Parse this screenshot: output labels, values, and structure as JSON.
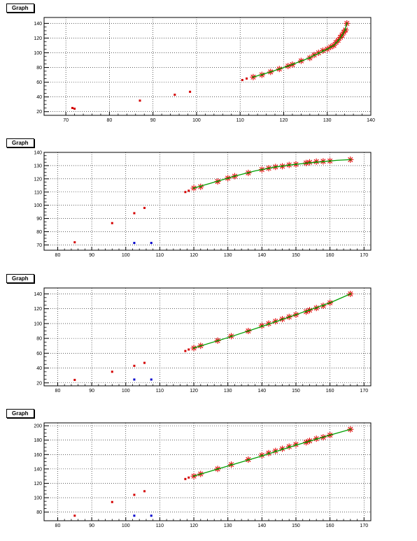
{
  "chart_data": [
    {
      "type": "scatter",
      "title": "Graph",
      "xlim": [
        65,
        140
      ],
      "ylim": [
        15,
        148
      ],
      "xticks": [
        70,
        80,
        90,
        100,
        110,
        120,
        130,
        140
      ],
      "yticks": [
        20,
        40,
        60,
        80,
        100,
        120,
        140
      ],
      "grid": true,
      "series": [
        {
          "style": "red-square",
          "color": "#d40000",
          "x": [
            71.5,
            72,
            87,
            95,
            98.5,
            110.5,
            111.5
          ],
          "y": [
            25,
            24,
            35,
            43,
            47,
            63,
            65
          ]
        },
        {
          "style": "red-star",
          "color": "#e00000",
          "x": [
            113,
            115,
            117,
            119,
            121,
            122,
            124,
            126,
            127,
            128,
            129,
            130,
            130.8,
            131.5,
            132,
            132.5,
            133,
            133.4,
            133.8,
            134.2,
            134.5
          ],
          "y": [
            67,
            70,
            74,
            78,
            82,
            84,
            89,
            93,
            97,
            100,
            103,
            105,
            108,
            110,
            114,
            117,
            121,
            124,
            128,
            131,
            140
          ]
        },
        {
          "style": "green-line",
          "color": "#00a000",
          "x": [
            113,
            117,
            121,
            125,
            128,
            130,
            131.5,
            132.5,
            133.4,
            134,
            134.5
          ],
          "y": [
            67,
            74,
            82,
            91,
            99,
            105,
            110,
            116,
            123,
            130,
            140
          ]
        }
      ]
    },
    {
      "type": "scatter",
      "title": "Graph",
      "xlim": [
        76,
        172
      ],
      "ylim": [
        66,
        140
      ],
      "xticks": [
        80,
        90,
        100,
        110,
        120,
        130,
        140,
        150,
        160,
        170
      ],
      "yticks": [
        70,
        80,
        90,
        100,
        110,
        120,
        130,
        140
      ],
      "grid": true,
      "series": [
        {
          "style": "red-square",
          "color": "#d40000",
          "x": [
            85,
            96,
            102.5,
            105.5,
            117.5,
            118.5
          ],
          "y": [
            72,
            86.5,
            94,
            98,
            110,
            111
          ]
        },
        {
          "style": "blue-square",
          "color": "#0000cc",
          "x": [
            102.5,
            107.5
          ],
          "y": [
            71.5,
            71.5
          ]
        },
        {
          "style": "red-star",
          "color": "#e00000",
          "x": [
            120,
            122,
            127,
            130,
            132,
            136,
            140,
            142,
            144,
            146,
            148,
            150,
            153,
            154,
            156,
            158,
            160,
            166
          ],
          "y": [
            113,
            114,
            118,
            120.5,
            122,
            124.5,
            127,
            128,
            129,
            129.5,
            130.5,
            131,
            132,
            132.5,
            133,
            133.2,
            133.5,
            134.5
          ]
        },
        {
          "style": "green-line",
          "color": "#00a000",
          "x": [
            120,
            126,
            132,
            138,
            144,
            150,
            156,
            162,
            166
          ],
          "y": [
            113,
            117.5,
            122,
            126,
            129,
            131,
            132.5,
            134,
            134.5
          ]
        }
      ]
    },
    {
      "type": "scatter",
      "title": "Graph",
      "xlim": [
        76,
        172
      ],
      "ylim": [
        16,
        148
      ],
      "xticks": [
        80,
        90,
        100,
        110,
        120,
        130,
        140,
        150,
        160,
        170
      ],
      "yticks": [
        20,
        40,
        60,
        80,
        100,
        120,
        140
      ],
      "grid": true,
      "series": [
        {
          "style": "red-square",
          "color": "#d40000",
          "x": [
            85,
            96,
            102.5,
            105.5,
            117.5,
            118.5
          ],
          "y": [
            24,
            35,
            43,
            47,
            63,
            65
          ]
        },
        {
          "style": "blue-square",
          "color": "#0000cc",
          "x": [
            102.5,
            107.5
          ],
          "y": [
            24.5,
            24.5
          ]
        },
        {
          "style": "red-star",
          "color": "#e00000",
          "x": [
            120,
            122,
            127,
            131,
            136,
            140,
            142,
            144,
            146,
            148,
            150,
            153,
            154,
            156,
            158,
            160,
            166
          ],
          "y": [
            67,
            70,
            77,
            83,
            90,
            97,
            100,
            103,
            106,
            109,
            112,
            116,
            118,
            121,
            124,
            128,
            140
          ]
        },
        {
          "style": "green-line",
          "color": "#00a000",
          "x": [
            120,
            130,
            140,
            150,
            160,
            166
          ],
          "y": [
            67,
            81,
            96,
            112,
            128,
            140
          ]
        }
      ]
    },
    {
      "type": "scatter",
      "title": "Graph",
      "xlim": [
        76,
        172
      ],
      "ylim": [
        68,
        204
      ],
      "xticks": [
        80,
        90,
        100,
        110,
        120,
        130,
        140,
        150,
        160,
        170
      ],
      "yticks": [
        80,
        100,
        120,
        140,
        160,
        180,
        200
      ],
      "grid": true,
      "series": [
        {
          "style": "red-square",
          "color": "#d40000",
          "x": [
            85,
            96,
            102.5,
            105.5,
            117.5,
            118.5
          ],
          "y": [
            75,
            94,
            104,
            109,
            126,
            128
          ]
        },
        {
          "style": "blue-square",
          "color": "#0000cc",
          "x": [
            102.5,
            107.5
          ],
          "y": [
            75,
            75
          ]
        },
        {
          "style": "red-star",
          "color": "#e00000",
          "x": [
            120,
            122,
            127,
            131,
            136,
            140,
            142,
            144,
            146,
            148,
            150,
            153,
            154,
            156,
            158,
            160,
            166
          ],
          "y": [
            130,
            133,
            140,
            146,
            153,
            159,
            162,
            165,
            168,
            171,
            174,
            177,
            179,
            182,
            184,
            187,
            195
          ]
        },
        {
          "style": "green-line",
          "color": "#00a000",
          "x": [
            120,
            130,
            140,
            150,
            160,
            166
          ],
          "y": [
            130,
            144,
            158,
            173,
            187,
            195
          ]
        }
      ]
    }
  ]
}
